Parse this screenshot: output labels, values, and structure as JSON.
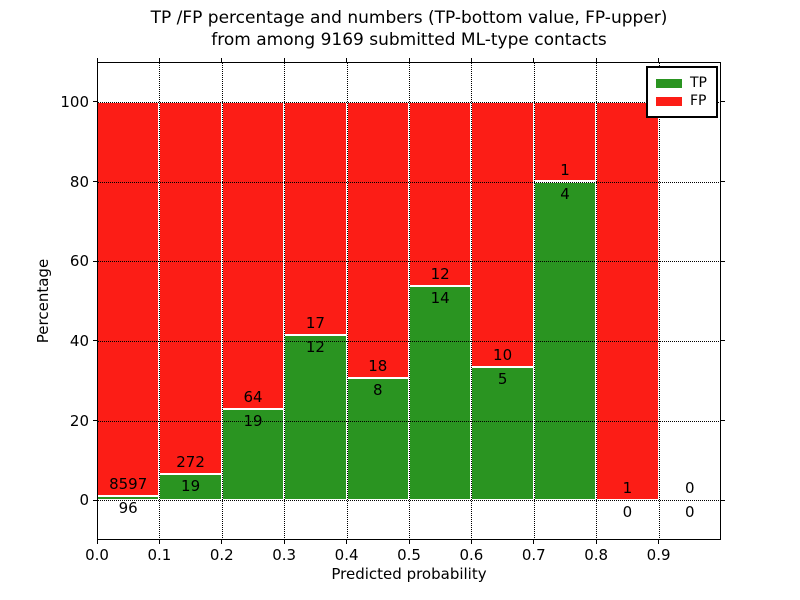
{
  "colors": {
    "tp_green": "#2a9421",
    "fp_red": "#fc1d16",
    "grid": "#000000",
    "frame": "#000000",
    "background": "#ffffff"
  },
  "chart_data": {
    "type": "bar",
    "stacked": true,
    "title_lines": [
      "TP /FP percentage and numbers (TP-bottom value, FP-upper)",
      "from among 9169 submitted ML-type contacts"
    ],
    "total_contacts": 9169,
    "xlabel": "Predicted probability",
    "ylabel": "Percentage",
    "xlim": [
      0.0,
      1.0
    ],
    "ylim": [
      -10,
      110
    ],
    "bin_width": 0.1,
    "grid": true,
    "x_tick_labels": [
      "0.0",
      "0.1",
      "0.2",
      "0.3",
      "0.4",
      "0.5",
      "0.6",
      "0.7",
      "0.8",
      "0.9"
    ],
    "y_ticks": [
      0,
      20,
      40,
      60,
      80,
      100
    ],
    "y_tick_labels": [
      "0",
      "20",
      "40",
      "60",
      "80",
      "100"
    ],
    "legend": {
      "position": "upper right",
      "entries": [
        {
          "label": "TP",
          "color": "#2a9421"
        },
        {
          "label": "FP",
          "color": "#fc1d16"
        }
      ]
    },
    "bins": [
      {
        "range": "0.0-0.1",
        "tp": 96,
        "fp": 8597,
        "tp_pct": 1.1
      },
      {
        "range": "0.1-0.2",
        "tp": 19,
        "fp": 272,
        "tp_pct": 6.5
      },
      {
        "range": "0.2-0.3",
        "tp": 19,
        "fp": 64,
        "tp_pct": 22.9
      },
      {
        "range": "0.3-0.4",
        "tp": 12,
        "fp": 17,
        "tp_pct": 41.4
      },
      {
        "range": "0.4-0.5",
        "tp": 8,
        "fp": 18,
        "tp_pct": 30.8
      },
      {
        "range": "0.5-0.6",
        "tp": 14,
        "fp": 12,
        "tp_pct": 53.8
      },
      {
        "range": "0.6-0.7",
        "tp": 5,
        "fp": 10,
        "tp_pct": 33.3
      },
      {
        "range": "0.7-0.8",
        "tp": 4,
        "fp": 1,
        "tp_pct": 80.0
      },
      {
        "range": "0.8-0.9",
        "tp": 0,
        "fp": 1,
        "tp_pct": 0.0
      },
      {
        "range": "0.9-1.0",
        "tp": 0,
        "fp": 0,
        "tp_pct": 0.0
      }
    ]
  }
}
